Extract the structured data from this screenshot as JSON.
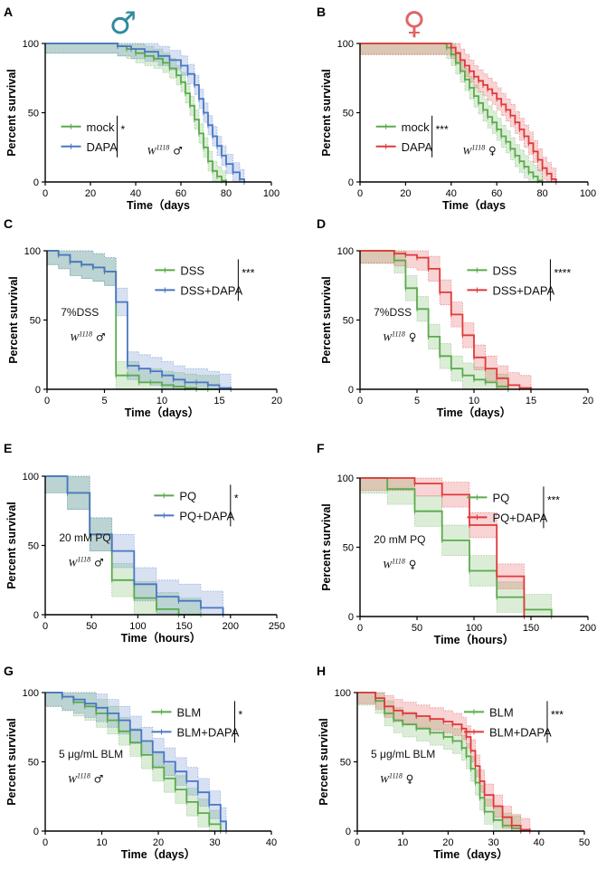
{
  "colors": {
    "mock": "#5aab4b",
    "treat_male": "#4a76c4",
    "treat_female": "#e0393b",
    "male_symbol": "#2e8a9c",
    "female_symbol": "#e06666"
  },
  "header": {
    "male_symbol": "♂",
    "female_symbol": "♀"
  },
  "chart_data": [
    {
      "type": "line",
      "panel": "A",
      "title": "",
      "xlabel": "Time（days",
      "ylabel": "Percent survival",
      "xlim": [
        0,
        100
      ],
      "ylim": [
        0,
        100
      ],
      "xticks": [
        0,
        20,
        40,
        60,
        80,
        100
      ],
      "yticks": [
        0,
        50,
        100
      ],
      "legend": [
        "mock",
        "DAPA"
      ],
      "significance": "*",
      "strain": "W",
      "strain_sup": "1118",
      "sex": "♂",
      "annotation": "",
      "series": [
        {
          "name": "mock",
          "color_key": "mock",
          "x": [
            0,
            32,
            36,
            40,
            44,
            48,
            52,
            55,
            58,
            60,
            62,
            64,
            66,
            68,
            70,
            72,
            74,
            76,
            78,
            80
          ],
          "y": [
            100,
            98,
            96,
            93,
            91,
            89,
            86,
            82,
            77,
            72,
            64,
            55,
            45,
            35,
            25,
            15,
            8,
            4,
            1,
            0
          ],
          "band": 7
        },
        {
          "name": "DAPA",
          "color_key": "treat_male",
          "x": [
            0,
            32,
            38,
            44,
            50,
            55,
            60,
            63,
            66,
            68,
            70,
            72,
            74,
            76,
            78,
            80,
            83,
            86,
            88
          ],
          "y": [
            100,
            98,
            96,
            94,
            91,
            88,
            84,
            78,
            70,
            60,
            50,
            41,
            33,
            26,
            19,
            13,
            7,
            2,
            0
          ],
          "band": 7
        }
      ]
    },
    {
      "type": "line",
      "panel": "B",
      "title": "",
      "xlabel": "Time（days",
      "ylabel": "Percent survival",
      "xlim": [
        0,
        100
      ],
      "ylim": [
        0,
        100
      ],
      "xticks": [
        0,
        20,
        40,
        60,
        80,
        100
      ],
      "yticks": [
        0,
        50,
        100
      ],
      "legend": [
        "mock",
        "DAPA"
      ],
      "significance": "***",
      "strain": "W",
      "strain_sup": "1118",
      "sex": "♀",
      "annotation": "",
      "series": [
        {
          "name": "mock",
          "color_key": "mock",
          "x": [
            0,
            38,
            40,
            42,
            44,
            46,
            48,
            50,
            52,
            54,
            56,
            58,
            60,
            62,
            64,
            66,
            68,
            70,
            72,
            74,
            76,
            78,
            80
          ],
          "y": [
            100,
            97,
            92,
            86,
            80,
            74,
            68,
            62,
            57,
            52,
            47,
            43,
            38,
            33,
            29,
            24,
            19,
            15,
            11,
            7,
            4,
            1,
            0
          ],
          "band": 8
        },
        {
          "name": "DAPA",
          "color_key": "treat_female",
          "x": [
            0,
            40,
            42,
            44,
            46,
            48,
            50,
            52,
            54,
            56,
            58,
            60,
            62,
            64,
            66,
            68,
            70,
            72,
            74,
            76,
            78,
            80,
            82,
            84,
            86
          ],
          "y": [
            100,
            97,
            93,
            88,
            84,
            80,
            76,
            73,
            70,
            67,
            64,
            60,
            56,
            52,
            48,
            43,
            38,
            33,
            28,
            22,
            16,
            10,
            6,
            2,
            0
          ],
          "band": 8
        }
      ]
    },
    {
      "type": "line",
      "panel": "C",
      "title": "",
      "xlabel": "Time（days）",
      "ylabel": "Percent survival",
      "xlim": [
        0,
        20
      ],
      "ylim": [
        0,
        100
      ],
      "xticks": [
        0,
        5,
        10,
        15,
        20
      ],
      "yticks": [
        0,
        50,
        100
      ],
      "legend": [
        "DSS",
        "DSS+DAPA"
      ],
      "significance": "***",
      "strain": "W",
      "strain_sup": "1118",
      "sex": "♂",
      "annotation": "7%DSS",
      "series": [
        {
          "name": "DSS",
          "color_key": "mock",
          "x": [
            0,
            1,
            2,
            3,
            4,
            5,
            6,
            7,
            8,
            9,
            10,
            11,
            12,
            13,
            14,
            15
          ],
          "y": [
            100,
            97,
            92,
            90,
            88,
            85,
            10,
            10,
            5,
            5,
            3,
            2,
            1,
            0,
            0,
            0
          ],
          "band": 10
        },
        {
          "name": "DSS+DAPA",
          "color_key": "treat_male",
          "x": [
            0,
            1,
            2,
            3,
            4,
            5,
            6,
            7,
            8,
            9,
            10,
            11,
            12,
            13,
            14,
            15,
            16
          ],
          "y": [
            100,
            97,
            92,
            90,
            88,
            85,
            63,
            17,
            15,
            13,
            10,
            7,
            5,
            5,
            3,
            1,
            0
          ],
          "band": 10
        }
      ]
    },
    {
      "type": "line",
      "panel": "D",
      "title": "",
      "xlabel": "Time（days）",
      "ylabel": "Percent survival",
      "xlim": [
        0,
        20
      ],
      "ylim": [
        0,
        100
      ],
      "xticks": [
        0,
        5,
        10,
        15,
        20
      ],
      "yticks": [
        0,
        50,
        100
      ],
      "legend": [
        "DSS",
        "DSS+DAPA"
      ],
      "significance": "****",
      "strain": "W",
      "strain_sup": "1118",
      "sex": "♀",
      "annotation": "7%DSS",
      "series": [
        {
          "name": "DSS",
          "color_key": "mock",
          "x": [
            0,
            3,
            4,
            5,
            6,
            7,
            8,
            9,
            10,
            11,
            12,
            13
          ],
          "y": [
            100,
            93,
            73,
            58,
            38,
            24,
            15,
            10,
            7,
            5,
            2,
            0
          ],
          "band": 9
        },
        {
          "name": "DSS+DAPA",
          "color_key": "treat_female",
          "x": [
            0,
            3,
            4,
            5,
            6,
            7,
            8,
            9,
            10,
            11,
            12,
            13,
            14,
            15
          ],
          "y": [
            100,
            98,
            97,
            95,
            87,
            70,
            54,
            39,
            23,
            15,
            8,
            3,
            1,
            0
          ],
          "band": 9
        }
      ]
    },
    {
      "type": "line",
      "panel": "E",
      "title": "",
      "xlabel": "Time（hours）",
      "ylabel": "Percent survival",
      "xlim": [
        0,
        250
      ],
      "ylim": [
        0,
        100
      ],
      "xticks": [
        0,
        50,
        100,
        150,
        200,
        250
      ],
      "yticks": [
        0,
        50,
        100
      ],
      "legend": [
        "PQ",
        "PQ+DAPA"
      ],
      "significance": "*",
      "strain": "W",
      "strain_sup": "1118",
      "sex": "♂",
      "annotation": "20 mM PQ",
      "series": [
        {
          "name": "PQ",
          "color_key": "mock",
          "x": [
            0,
            24,
            48,
            72,
            96,
            120,
            144,
            168
          ],
          "y": [
            100,
            88,
            58,
            25,
            12,
            4,
            0,
            0
          ],
          "band": 12
        },
        {
          "name": "PQ+DAPA",
          "color_key": "treat_male",
          "x": [
            0,
            24,
            48,
            72,
            96,
            120,
            144,
            168,
            192
          ],
          "y": [
            100,
            88,
            58,
            46,
            22,
            13,
            10,
            5,
            0
          ],
          "band": 12
        }
      ]
    },
    {
      "type": "line",
      "panel": "F",
      "title": "",
      "xlabel": "Time（hours）",
      "ylabel": "Percent survival",
      "xlim": [
        0,
        200
      ],
      "ylim": [
        0,
        100
      ],
      "xticks": [
        0,
        50,
        100,
        150,
        200
      ],
      "yticks": [
        0,
        50,
        100
      ],
      "legend": [
        "PQ",
        "PQ+DAPA"
      ],
      "significance": "***",
      "strain": "W",
      "strain_sup": "1118",
      "sex": "♀",
      "annotation": "20 mM PQ",
      "series": [
        {
          "name": "PQ",
          "color_key": "mock",
          "x": [
            0,
            24,
            48,
            72,
            96,
            120,
            144,
            168
          ],
          "y": [
            100,
            92,
            76,
            55,
            33,
            14,
            5,
            0
          ],
          "band": 11
        },
        {
          "name": "PQ+DAPA",
          "color_key": "treat_female",
          "x": [
            0,
            48,
            72,
            96,
            120,
            144
          ],
          "y": [
            100,
            96,
            88,
            66,
            29,
            0
          ],
          "band": 9
        }
      ]
    },
    {
      "type": "line",
      "panel": "G",
      "title": "",
      "xlabel": "Time（days）",
      "ylabel": "Percent survival",
      "xlim": [
        0,
        40
      ],
      "ylim": [
        0,
        100
      ],
      "xticks": [
        0,
        10,
        20,
        30,
        40
      ],
      "yticks": [
        0,
        50,
        100
      ],
      "legend": [
        "BLM",
        "BLM+DAPA"
      ],
      "significance": "*",
      "strain": "W",
      "strain_sup": "1118",
      "sex": "♂",
      "annotation": "5 μg/mL BLM",
      "series": [
        {
          "name": "BLM",
          "color_key": "mock",
          "x": [
            0,
            3,
            5,
            7,
            9,
            11,
            13,
            15,
            17,
            19,
            21,
            23,
            25,
            27,
            29,
            31
          ],
          "y": [
            100,
            97,
            93,
            90,
            85,
            80,
            72,
            64,
            55,
            46,
            38,
            30,
            21,
            13,
            5,
            0
          ],
          "band": 10
        },
        {
          "name": "BLM+DAPA",
          "color_key": "treat_male",
          "x": [
            0,
            3,
            5,
            7,
            9,
            11,
            13,
            15,
            17,
            19,
            21,
            23,
            25,
            27,
            29,
            31,
            32
          ],
          "y": [
            100,
            97,
            95,
            92,
            89,
            85,
            80,
            73,
            65,
            57,
            50,
            43,
            36,
            28,
            19,
            7,
            0
          ],
          "band": 10
        }
      ]
    },
    {
      "type": "line",
      "panel": "H",
      "title": "",
      "xlabel": "Time（days）",
      "ylabel": "Percent survival",
      "xlim": [
        0,
        50
      ],
      "ylim": [
        0,
        100
      ],
      "xticks": [
        0,
        10,
        20,
        30,
        40,
        50
      ],
      "yticks": [
        0,
        50,
        100
      ],
      "legend": [
        "BLM",
        "BLM+DAPA"
      ],
      "significance": "***",
      "strain": "W",
      "strain_sup": "1118",
      "sex": "♀",
      "annotation": "5 μg/mL BLM",
      "series": [
        {
          "name": "BLM",
          "color_key": "mock",
          "x": [
            0,
            4,
            6,
            8,
            10,
            13,
            16,
            19,
            21,
            23,
            24,
            25,
            26,
            27,
            28,
            30,
            32,
            34,
            36
          ],
          "y": [
            100,
            94,
            85,
            80,
            77,
            74,
            71,
            68,
            65,
            60,
            54,
            45,
            35,
            24,
            14,
            8,
            4,
            2,
            0
          ],
          "band": 9
        },
        {
          "name": "BLM+DAPA",
          "color_key": "treat_female",
          "x": [
            0,
            4,
            6,
            8,
            10,
            13,
            16,
            19,
            21,
            23,
            24,
            25,
            26,
            27,
            28,
            30,
            32,
            34,
            36,
            38
          ],
          "y": [
            100,
            96,
            90,
            87,
            85,
            83,
            81,
            79,
            77,
            74,
            68,
            58,
            47,
            36,
            26,
            18,
            10,
            4,
            1,
            0
          ],
          "band": 8
        }
      ]
    }
  ]
}
